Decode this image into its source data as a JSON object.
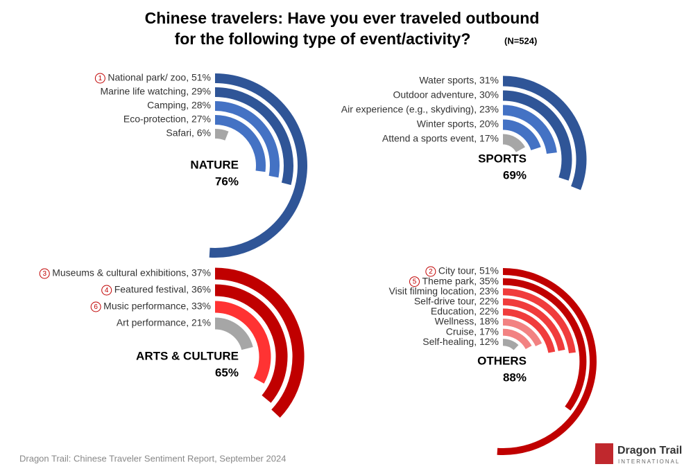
{
  "title_lines": [
    "Chinese travelers: Have you ever traveled outbound",
    "for the following type of event/activity?"
  ],
  "note": "(N=524)",
  "footer": "Dragon Trail: Chinese Traveler Sentiment Report, September 2024",
  "logo": {
    "name": "Dragon Trail",
    "sub": "INTERNATIONAL"
  },
  "chart_data": [
    {
      "type": "radial_bar",
      "title": "NATURE",
      "total": "76%",
      "rlim": [
        0,
        100
      ],
      "categories": [
        "National park/ zoo, 51%",
        "Marine life watching, 29%",
        "Camping, 28%",
        "Eco-protection, 27%",
        "Safari, 6%"
      ],
      "values": [
        51,
        29,
        28,
        27,
        6
      ],
      "colors": [
        "#2f5597",
        "#2f5597",
        "#4472c4",
        "#4472c4",
        "#a6a6a6"
      ],
      "ranks": [
        1,
        null,
        null,
        null,
        null
      ]
    },
    {
      "type": "radial_bar",
      "title": "SPORTS",
      "total": "69%",
      "rlim": [
        0,
        100
      ],
      "categories": [
        "Water sports, 31%",
        "Outdoor adventure, 30%",
        "Air experience (e.g., skydiving), 23%",
        "Winter sports, 20%",
        "Attend a sports event, 17%"
      ],
      "values": [
        31,
        30,
        23,
        20,
        17
      ],
      "colors": [
        "#2f5597",
        "#2f5597",
        "#4472c4",
        "#4472c4",
        "#a6a6a6"
      ],
      "ranks": [
        null,
        null,
        null,
        null,
        null
      ]
    },
    {
      "type": "radial_bar",
      "title": "ARTS & CULTURE",
      "total": "65%",
      "rlim": [
        0,
        100
      ],
      "categories": [
        "Museums & cultural exhibitions, 37%",
        "Featured festival, 36%",
        "Music performance, 33%",
        "Art performance, 21%"
      ],
      "values": [
        37,
        36,
        33,
        21
      ],
      "colors": [
        "#c00000",
        "#c00000",
        "#ff3333",
        "#a6a6a6"
      ],
      "ranks": [
        3,
        4,
        6,
        null
      ]
    },
    {
      "type": "radial_bar",
      "title": "OTHERS",
      "total": "88%",
      "rlim": [
        0,
        100
      ],
      "categories": [
        "City tour, 51%",
        "Theme park, 35%",
        "Visit filming location, 23%",
        "Self-drive tour, 22%",
        "Education, 22%",
        "Wellness, 18%",
        "Cruise, 17%",
        "Self-healing, 12%"
      ],
      "values": [
        51,
        35,
        23,
        22,
        22,
        18,
        17,
        12
      ],
      "colors": [
        "#c00000",
        "#c00000",
        "#f03c3c",
        "#f03c3c",
        "#f03c3c",
        "#f28282",
        "#f28282",
        "#a6a6a6"
      ],
      "ranks": [
        2,
        5,
        null,
        null,
        null,
        null,
        null,
        null
      ]
    }
  ]
}
